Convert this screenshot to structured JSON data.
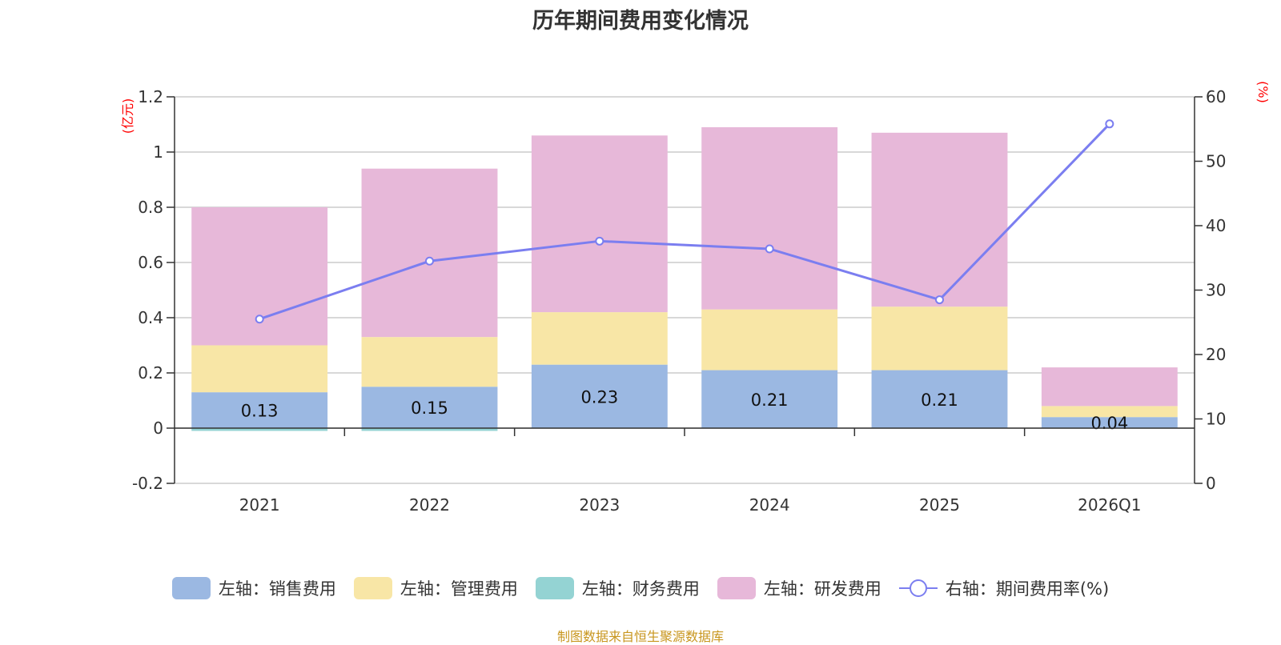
{
  "chart_data": {
    "type": "bar",
    "stacked": true,
    "title": "历年期间费用变化情况",
    "categories": [
      "2021",
      "2022",
      "2023",
      "2024",
      "2025",
      "2026Q1"
    ],
    "left_axis": {
      "unit": "(亿元)",
      "ylim": [
        -0.2,
        1.2
      ],
      "ticks": [
        -0.2,
        0,
        0.2,
        0.4,
        0.6,
        0.8,
        1,
        1.2
      ]
    },
    "right_axis": {
      "unit": "(%)",
      "ylim": [
        0,
        60
      ],
      "ticks": [
        0,
        10,
        20,
        30,
        40,
        50,
        60
      ]
    },
    "series": [
      {
        "name": "左轴：销售费用",
        "axis": "left",
        "color": "#9bb8e2",
        "values": [
          0.13,
          0.15,
          0.23,
          0.21,
          0.21,
          0.04
        ]
      },
      {
        "name": "左轴：管理费用",
        "axis": "left",
        "color": "#f8e6a6",
        "values": [
          0.17,
          0.18,
          0.19,
          0.22,
          0.23,
          0.04
        ]
      },
      {
        "name": "左轴：财务费用",
        "axis": "left",
        "color": "#94d3d3",
        "values": [
          -0.01,
          -0.01,
          0.0,
          0.0,
          0.0,
          0.0
        ]
      },
      {
        "name": "左轴：研发费用",
        "axis": "left",
        "color": "#e7b8d9",
        "values": [
          0.5,
          0.61,
          0.64,
          0.66,
          0.63,
          0.14
        ]
      },
      {
        "name": "右轴：期间费用率(%)",
        "axis": "right",
        "type": "line",
        "color": "#7b7ef0",
        "values": [
          25.5,
          34.5,
          37.6,
          36.4,
          28.5,
          55.8
        ]
      }
    ],
    "data_labels": [
      "0.13",
      "0.15",
      "0.23",
      "0.21",
      "0.21",
      "0.04"
    ]
  },
  "source_note": "制图数据来自恒生聚源数据库"
}
